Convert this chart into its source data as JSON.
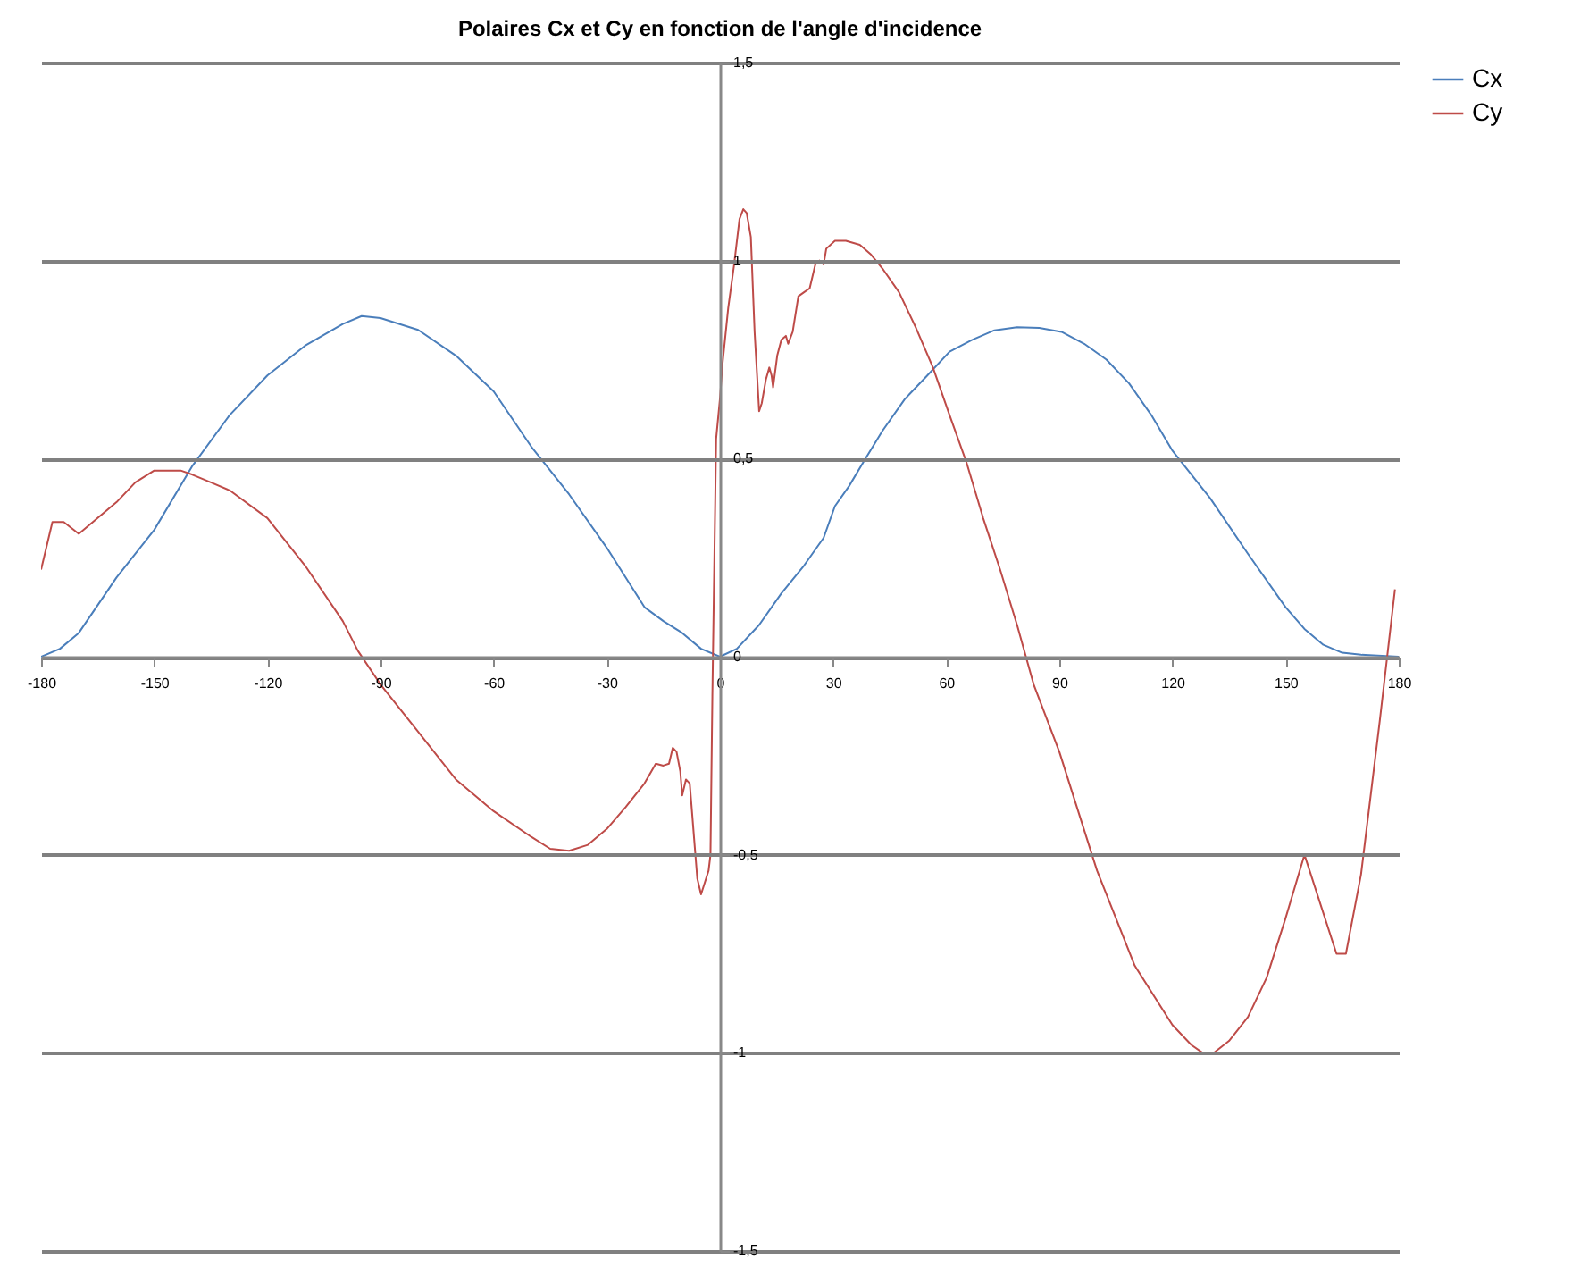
{
  "chart_data": {
    "type": "line",
    "title": "Polaires Cx et Cy en fonction de l'angle d'incidence",
    "xlim": [
      -180,
      180
    ],
    "xticks": [
      -180,
      -150,
      -120,
      -90,
      -60,
      -30,
      0,
      30,
      60,
      90,
      120,
      150,
      180
    ],
    "ylim": [
      -1.5,
      1.5
    ],
    "yticks": [
      {
        "value": -1.5,
        "label": "-1,5"
      },
      -1,
      {
        "value": -0.5,
        "label": "-0,5"
      },
      0,
      {
        "value": 0.5,
        "label": "0,5"
      },
      1,
      {
        "value": 1.5,
        "label": "1,5"
      }
    ],
    "grid": "y",
    "legend": "right",
    "marker": "none",
    "line_style": "solid",
    "series": [
      {
        "name": "Cx",
        "color": "#4a7ebb",
        "x": [
          -180,
          -175,
          -170,
          -160,
          -150,
          -140,
          -130,
          -120,
          -110,
          -100,
          -95,
          -90,
          -80,
          -70,
          -60,
          -50,
          -40,
          -30,
          -20,
          -15,
          -10,
          -5,
          0,
          4.5,
          10.4,
          16.3,
          22.3,
          27.5,
          30.5,
          34.2,
          38.6,
          43.1,
          49,
          55,
          60.9,
          66.9,
          72.8,
          78.8,
          84.7,
          90.6,
          96.6,
          102.5,
          108.5,
          114.4,
          120,
          130,
          140,
          150,
          155,
          160,
          165,
          170,
          180
        ],
        "values": [
          0,
          0.02,
          0.06,
          0.2,
          0.32,
          0.48,
          0.61,
          0.71,
          0.785,
          0.84,
          0.86,
          0.855,
          0.825,
          0.76,
          0.67,
          0.53,
          0.41,
          0.275,
          0.125,
          0.09,
          0.06,
          0.02,
          0,
          0.02,
          0.08,
          0.16,
          0.23,
          0.3,
          0.38,
          0.43,
          0.5,
          0.57,
          0.65,
          0.71,
          0.77,
          0.8,
          0.824,
          0.832,
          0.83,
          0.82,
          0.79,
          0.75,
          0.69,
          0.61,
          0.52,
          0.4,
          0.26,
          0.125,
          0.07,
          0.03,
          0.01,
          0.005,
          0
        ]
      },
      {
        "name": "Cy",
        "color": "#be4b48",
        "x": [
          -180,
          -177,
          -174,
          -170,
          -165,
          -160,
          -155,
          -150,
          -143,
          -140,
          -135,
          -130,
          -120,
          -110,
          -100,
          -96,
          -90,
          -80,
          -70,
          -60,
          -50,
          -45,
          -40,
          -35,
          -30,
          -25,
          -20,
          -17,
          -15,
          -13.5,
          -12.5,
          -11.5,
          -10.5,
          -10,
          -9,
          -8,
          -7,
          -6,
          -5,
          -4,
          -3,
          -2.5,
          -2,
          -1,
          0,
          0.7,
          2.2,
          3.7,
          5.2,
          6.2,
          7.1,
          8.2,
          9.2,
          10.4,
          11.1,
          12.2,
          13.1,
          13.7,
          14.1,
          15.2,
          16.3,
          17.5,
          18.1,
          19.3,
          20.8,
          22.3,
          23.8,
          25.3,
          26.4,
          27.5,
          28.2,
          30.5,
          33.4,
          37.1,
          40.1,
          43.1,
          47.5,
          52,
          56.5,
          60.9,
          65.4,
          69.8,
          74.3,
          78.8,
          83.2,
          90,
          100,
          110,
          120,
          125,
          128,
          131,
          135,
          140,
          145,
          150,
          155,
          163.5,
          166,
          170,
          175,
          179
        ],
        "values": [
          0.22,
          0.34,
          0.34,
          0.31,
          0.35,
          0.39,
          0.44,
          0.47,
          0.47,
          0.46,
          0.44,
          0.42,
          0.35,
          0.23,
          0.09,
          0.015,
          -0.07,
          -0.19,
          -0.31,
          -0.39,
          -0.455,
          -0.485,
          -0.49,
          -0.475,
          -0.435,
          -0.38,
          -0.32,
          -0.27,
          -0.275,
          -0.27,
          -0.23,
          -0.24,
          -0.29,
          -0.35,
          -0.31,
          -0.32,
          -0.44,
          -0.56,
          -0.6,
          -0.57,
          -0.54,
          -0.5,
          -0.1,
          0.55,
          0.65,
          0.74,
          0.88,
          0.985,
          1.105,
          1.13,
          1.12,
          1.06,
          0.82,
          0.62,
          0.64,
          0.7,
          0.73,
          0.71,
          0.68,
          0.76,
          0.8,
          0.81,
          0.79,
          0.82,
          0.91,
          0.92,
          0.93,
          0.99,
          1,
          0.99,
          1.03,
          1.05,
          1.05,
          1.04,
          1.015,
          0.98,
          0.92,
          0.83,
          0.73,
          0.61,
          0.49,
          0.35,
          0.22,
          0.08,
          -0.07,
          -0.24,
          -0.54,
          -0.78,
          -0.93,
          -0.98,
          -1,
          -1,
          -0.97,
          -0.91,
          -0.81,
          -0.66,
          -0.5,
          -0.75,
          -0.75,
          -0.55,
          -0.16,
          0.17
        ]
      }
    ]
  }
}
